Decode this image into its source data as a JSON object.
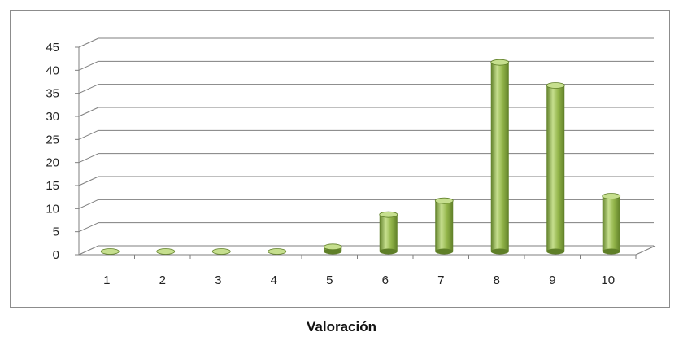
{
  "chart_data": {
    "type": "bar",
    "categories": [
      "1",
      "2",
      "3",
      "4",
      "5",
      "6",
      "7",
      "8",
      "9",
      "10"
    ],
    "values": [
      0,
      0,
      0,
      0,
      1,
      8,
      11,
      41,
      36,
      12
    ],
    "title": "",
    "xlabel": "Valoración",
    "ylabel": "",
    "ylim": [
      0,
      45
    ],
    "yticks": [
      "0",
      "5",
      "10",
      "15",
      "20",
      "25",
      "30",
      "35",
      "40",
      "45"
    ],
    "grid": true,
    "legend": "none",
    "bar_style": "3d-cylinder",
    "colors": {
      "bar": "#93b54a",
      "bar_light": "#c6df8e",
      "bar_dark": "#5f7f28",
      "grid": "#7f7f7f"
    }
  }
}
